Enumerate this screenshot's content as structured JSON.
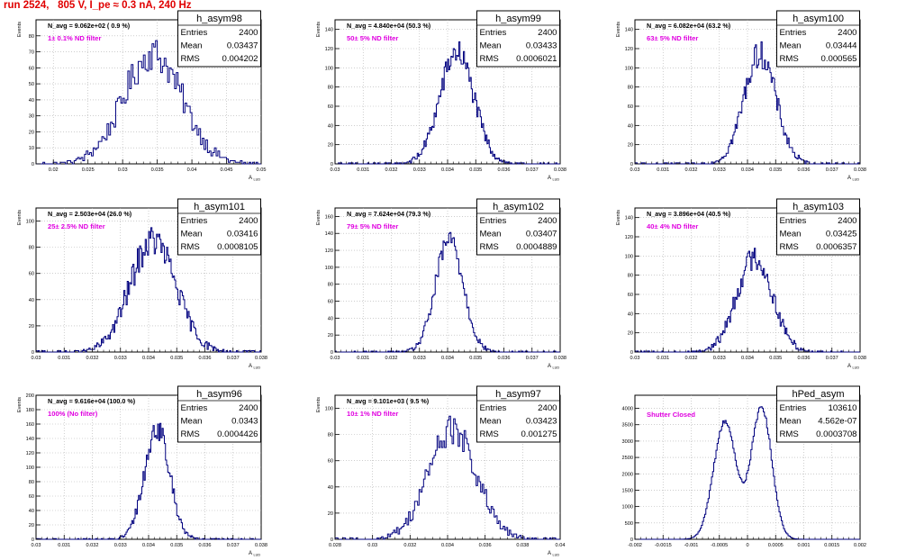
{
  "page": {
    "title": "run 2524,   805 V, I_pe ≈ 0.3 nA, 240 Hz"
  },
  "colors": {
    "histogram": "#00007f",
    "annotation": "#e000e0",
    "title": "#e00000",
    "grid": "#b0b0b0"
  },
  "chart_data": [
    {
      "type": "histogram",
      "name": "h_asym98",
      "stats": {
        "entries_label": "Entries",
        "entries": "2400",
        "mean_label": "Mean",
        "mean": "0.03437",
        "rms_label": "RMS",
        "rms": "0.004202"
      },
      "header": "N_avg = 9.062e+02 ( 0.9 %)",
      "annotation": "1± 0.1% ND filter",
      "ylabel": "Events",
      "xlabel": "A",
      "xlim": [
        0.0175,
        0.05
      ],
      "ylim": [
        0,
        90
      ],
      "xticks": [
        0.02,
        0.025,
        0.03,
        0.035,
        0.04,
        0.045,
        0.05
      ],
      "xticklabels": [
        "0.02",
        "0.025",
        "0.03",
        "0.035",
        "0.04",
        "0.045",
        "0.05"
      ],
      "yticks": [
        0,
        10,
        20,
        30,
        40,
        50,
        60,
        70,
        80
      ],
      "yticklabels": [
        "0",
        "10",
        "20",
        "30",
        "40",
        "50",
        "60",
        "70",
        "80"
      ],
      "mean": 0.03437,
      "rms": 0.004202,
      "entries": 2400,
      "bin_width": 0.00025,
      "peak": 84
    },
    {
      "type": "histogram",
      "name": "h_asym99",
      "stats": {
        "entries_label": "Entries",
        "entries": "2400",
        "mean_label": "Mean",
        "mean": "0.03433",
        "rms_label": "RMS",
        "rms": "0.0006021"
      },
      "header": "N_avg = 4.840e+04 (50.3 %)",
      "annotation": "50± 5% ND filter",
      "ylabel": "Events",
      "xlabel": "A",
      "xlim": [
        0.03,
        0.038
      ],
      "ylim": [
        0,
        150
      ],
      "xticks": [
        0.03,
        0.031,
        0.032,
        0.033,
        0.034,
        0.035,
        0.036,
        0.037,
        0.038
      ],
      "xticklabels": [
        "0.03",
        "0.031",
        "0.032",
        "0.033",
        "0.034",
        "0.035",
        "0.036",
        "0.037",
        "0.038"
      ],
      "yticks": [
        0,
        20,
        40,
        60,
        80,
        100,
        120,
        140
      ],
      "yticklabels": [
        "0",
        "20",
        "40",
        "60",
        "80",
        "100",
        "120",
        "140"
      ],
      "mean": 0.03433,
      "rms": 0.0006021,
      "entries": 2400,
      "bin_width": 4e-05,
      "peak": 142
    },
    {
      "type": "histogram",
      "name": "h_asym100",
      "stats": {
        "entries_label": "Entries",
        "entries": "2400",
        "mean_label": "Mean",
        "mean": "0.03444",
        "rms_label": "RMS",
        "rms": "0.000565"
      },
      "header": "N_avg = 6.082e+04 (63.2 %)",
      "annotation": "63± 5% ND filter",
      "ylabel": "Events",
      "xlabel": "A",
      "xlim": [
        0.03,
        0.038
      ],
      "ylim": [
        0,
        150
      ],
      "xticks": [
        0.03,
        0.031,
        0.032,
        0.033,
        0.034,
        0.035,
        0.036,
        0.037,
        0.038
      ],
      "xticklabels": [
        "0.03",
        "0.031",
        "0.032",
        "0.033",
        "0.034",
        "0.035",
        "0.036",
        "0.037",
        "0.038"
      ],
      "yticks": [
        0,
        20,
        40,
        60,
        80,
        100,
        120,
        140
      ],
      "yticklabels": [
        "0",
        "20",
        "40",
        "60",
        "80",
        "100",
        "120",
        "140"
      ],
      "mean": 0.03444,
      "rms": 0.000565,
      "entries": 2400,
      "bin_width": 4e-05,
      "peak": 140
    },
    {
      "type": "histogram",
      "name": "h_asym101",
      "stats": {
        "entries_label": "Entries",
        "entries": "2400",
        "mean_label": "Mean",
        "mean": "0.03416",
        "rms_label": "RMS",
        "rms": "0.0008105"
      },
      "header": "N_avg = 2.503e+04 (26.0 %)",
      "annotation": "25± 2.5% ND filter",
      "ylabel": "Events",
      "xlabel": "A",
      "xlim": [
        0.03,
        0.038
      ],
      "ylim": [
        0,
        110
      ],
      "xticks": [
        0.03,
        0.031,
        0.032,
        0.033,
        0.034,
        0.035,
        0.036,
        0.037,
        0.038
      ],
      "xticklabels": [
        "0.03",
        "0.031",
        "0.032",
        "0.033",
        "0.034",
        "0.035",
        "0.036",
        "0.037",
        "0.038"
      ],
      "yticks": [
        0,
        20,
        40,
        60,
        80,
        100
      ],
      "yticklabels": [
        "0",
        "20",
        "40",
        "60",
        "80",
        "100"
      ],
      "mean": 0.03416,
      "rms": 0.0008105,
      "entries": 2400,
      "bin_width": 4e-05,
      "peak": 104
    },
    {
      "type": "histogram",
      "name": "h_asym102",
      "stats": {
        "entries_label": "Entries",
        "entries": "2400",
        "mean_label": "Mean",
        "mean": "0.03407",
        "rms_label": "RMS",
        "rms": "0.0004889"
      },
      "header": "N_avg = 7.624e+04 (79.3 %)",
      "annotation": "79± 5% ND filter",
      "ylabel": "Events",
      "xlabel": "A",
      "xlim": [
        0.03,
        0.038
      ],
      "ylim": [
        0,
        170
      ],
      "xticks": [
        0.03,
        0.031,
        0.032,
        0.033,
        0.034,
        0.035,
        0.036,
        0.037,
        0.038
      ],
      "xticklabels": [
        "0.03",
        "0.031",
        "0.032",
        "0.033",
        "0.034",
        "0.035",
        "0.036",
        "0.037",
        "0.038"
      ],
      "yticks": [
        0,
        20,
        40,
        60,
        80,
        100,
        120,
        140,
        160
      ],
      "yticklabels": [
        "0",
        "20",
        "40",
        "60",
        "80",
        "100",
        "120",
        "140",
        "160"
      ],
      "mean": 0.03407,
      "rms": 0.0004889,
      "entries": 2400,
      "bin_width": 4e-05,
      "peak": 162
    },
    {
      "type": "histogram",
      "name": "h_asym103",
      "stats": {
        "entries_label": "Entries",
        "entries": "2400",
        "mean_label": "Mean",
        "mean": "0.03425",
        "rms_label": "RMS",
        "rms": "0.0006357"
      },
      "header": "N_avg = 3.896e+04 (40.5 %)",
      "annotation": "40± 4% ND filter",
      "ylabel": "Events",
      "xlabel": "A",
      "xlim": [
        0.03,
        0.038
      ],
      "ylim": [
        0,
        150
      ],
      "xticks": [
        0.03,
        0.031,
        0.032,
        0.033,
        0.034,
        0.035,
        0.036,
        0.037,
        0.038
      ],
      "xticklabels": [
        "0.03",
        "0.031",
        "0.032",
        "0.033",
        "0.034",
        "0.035",
        "0.036",
        "0.037",
        "0.038"
      ],
      "yticks": [
        0,
        20,
        40,
        60,
        80,
        100,
        120,
        140
      ],
      "yticklabels": [
        "0",
        "20",
        "40",
        "60",
        "80",
        "100",
        "120",
        "140"
      ],
      "mean": 0.03425,
      "rms": 0.0006357,
      "entries": 2400,
      "bin_width": 4e-05,
      "peak": 120
    },
    {
      "type": "histogram",
      "name": "h_asym96",
      "stats": {
        "entries_label": "Entries",
        "entries": "2400",
        "mean_label": "Mean",
        "mean": "0.0343",
        "rms_label": "RMS",
        "rms": "0.0004426"
      },
      "header": "N_avg = 9.616e+04 (100.0 %)",
      "annotation": "100% (No filter)",
      "ylabel": "Events",
      "xlabel": "A",
      "xlim": [
        0.03,
        0.038
      ],
      "ylim": [
        0,
        200
      ],
      "xticks": [
        0.03,
        0.031,
        0.032,
        0.033,
        0.034,
        0.035,
        0.036,
        0.037,
        0.038
      ],
      "xticklabels": [
        "0.03",
        "0.031",
        "0.032",
        "0.033",
        "0.034",
        "0.035",
        "0.036",
        "0.037",
        "0.038"
      ],
      "yticks": [
        0,
        20,
        40,
        60,
        80,
        100,
        120,
        140,
        160,
        180,
        200
      ],
      "yticklabels": [
        "0",
        "20",
        "40",
        "60",
        "80",
        "100",
        "120",
        "140",
        "160",
        "180",
        "200"
      ],
      "mean": 0.0343,
      "rms": 0.0004426,
      "entries": 2400,
      "bin_width": 4e-05,
      "peak": 188
    },
    {
      "type": "histogram",
      "name": "h_asym97",
      "stats": {
        "entries_label": "Entries",
        "entries": "2400",
        "mean_label": "Mean",
        "mean": "0.03423",
        "rms_label": "RMS",
        "rms": "0.001275"
      },
      "header": "N_avg = 9.101e+03 ( 9.5 %)",
      "annotation": "10± 1% ND filter",
      "ylabel": "Events",
      "xlabel": "A",
      "xlim": [
        0.028,
        0.04
      ],
      "ylim": [
        0,
        110
      ],
      "xticks": [
        0.028,
        0.03,
        0.032,
        0.034,
        0.036,
        0.038,
        0.04
      ],
      "xticklabels": [
        "0.028",
        "0.03",
        "0.032",
        "0.034",
        "0.036",
        "0.038",
        "0.04"
      ],
      "yticks": [
        0,
        20,
        40,
        60,
        80,
        100
      ],
      "yticklabels": [
        "0",
        "20",
        "40",
        "60",
        "80",
        "100"
      ],
      "mean": 0.03423,
      "rms": 0.001275,
      "entries": 2400,
      "bin_width": 8e-05,
      "peak": 102
    },
    {
      "type": "histogram",
      "name": "hPed_asym",
      "stats": {
        "entries_label": "Entries",
        "entries": "103610",
        "mean_label": "Mean",
        "mean": "4.562e-07",
        "rms_label": "RMS",
        "rms": "0.0003708"
      },
      "header": "",
      "annotation": "Shutter Closed",
      "ylabel": "",
      "xlabel": "",
      "xlim": [
        -0.002,
        0.002
      ],
      "ylim": [
        0,
        4400
      ],
      "xticks": [
        -0.002,
        -0.0015,
        -0.001,
        -0.0005,
        0,
        0.0005,
        0.001,
        0.0015,
        0.002
      ],
      "xticklabels": [
        "-0.002",
        "-0.0015",
        "-0.001",
        "-0.0005",
        "0",
        "0.0005",
        "0.001",
        "0.0015",
        "0.002"
      ],
      "yticks": [
        0,
        500,
        1000,
        1500,
        2000,
        2500,
        3000,
        3500,
        4000
      ],
      "yticklabels": [
        "0",
        "500",
        "1000",
        "1500",
        "2000",
        "2500",
        "3000",
        "3500",
        "4000"
      ],
      "mean": 4.562e-07,
      "rms": 0.0003708,
      "entries": 103610,
      "bin_width": 2e-05,
      "bimodal": {
        "left": -0.0004,
        "right": 0.00025,
        "width": 0.0002,
        "left_peak": 3600,
        "right_peak": 4050
      }
    }
  ]
}
